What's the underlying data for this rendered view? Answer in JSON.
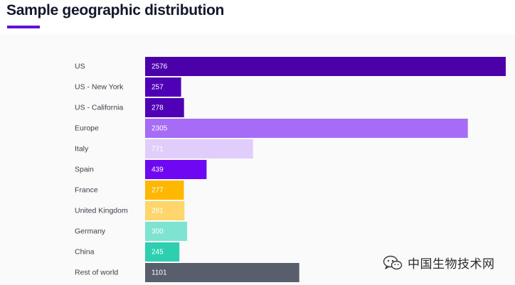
{
  "page": {
    "title": "Sample geographic distribution",
    "accent_color": "#5e12d6"
  },
  "watermark": {
    "text": "中国生物技术网",
    "icon": "wechat-icon"
  },
  "chart_data": {
    "type": "bar",
    "orientation": "horizontal",
    "title": "Sample geographic distribution",
    "xlabel": "",
    "ylabel": "",
    "grid": false,
    "categories": [
      "US",
      "US - New York",
      "US - California",
      "Europe",
      "Italy",
      "Spain",
      "France",
      "United Kingdom",
      "Germany",
      "China",
      "Rest of world"
    ],
    "values": [
      2576,
      257,
      278,
      2305,
      771,
      439,
      277,
      281,
      300,
      245,
      1101
    ],
    "colors": [
      "#4c00aa",
      "#4f00b6",
      "#4f00b6",
      "#a66cf6",
      "#e1cdfb",
      "#6e07f2",
      "#ffb700",
      "#ffd66b",
      "#7fe3d1",
      "#2ecfb0",
      "#595e6c"
    ],
    "label_colors": [
      "#ffffff",
      "#ffffff",
      "#ffffff",
      "#ffffff",
      "#ffffff",
      "#ffffff",
      "#ffffff",
      "#ffffff",
      "#ffffff",
      "#ffffff",
      "#ffffff"
    ],
    "xlim": [
      0,
      2576
    ]
  }
}
